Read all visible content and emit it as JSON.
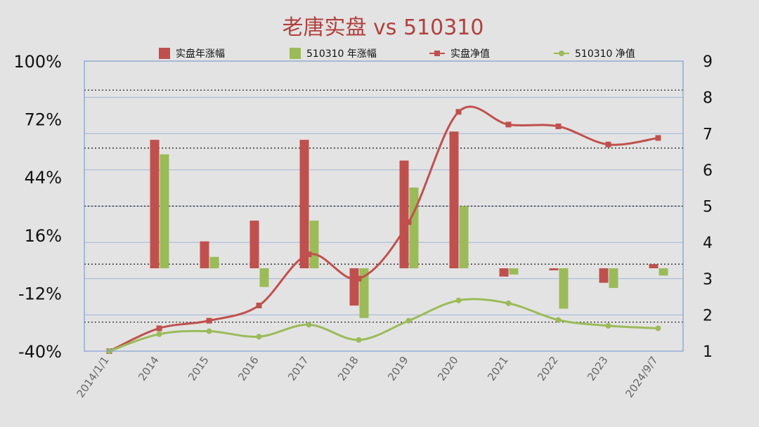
{
  "chart_data": {
    "type": "bar",
    "title": "老唐实盘 vs 510310",
    "colors": {
      "title": "#b0413e",
      "bar_shipan": "#c0504d",
      "bar_510310": "#9bbb59",
      "line_shipan": "#c0504d",
      "line_510310": "#9bbb59",
      "plot_border": "#7f9fd0",
      "grid_solid": "#9fb4d8",
      "grid_dotted": "#111111"
    },
    "categories": [
      "2014/1/1",
      "2014",
      "2015",
      "2016",
      "2017",
      "2018",
      "2019",
      "2020",
      "2021",
      "2022",
      "2023",
      "2024/9/7"
    ],
    "legend": {
      "position": "top",
      "items": [
        "实盘年涨幅",
        "510310 年涨幅",
        "实盘净值",
        "510310 净值"
      ]
    },
    "y_left": {
      "ticks": [
        "100%",
        "72%",
        "44%",
        "16%",
        "-12%",
        "-40%"
      ],
      "range": [
        -40,
        100
      ],
      "unit": "%"
    },
    "y_right": {
      "ticks": [
        "9",
        "8",
        "7",
        "6",
        "5",
        "4",
        "3",
        "2",
        "1"
      ],
      "range": [
        1,
        9
      ]
    },
    "grid": "on",
    "bar_series": [
      {
        "name": "实盘年涨幅",
        "values": [
          null,
          62,
          13,
          23,
          62,
          -18,
          52,
          66,
          -4,
          -1,
          -7,
          2
        ]
      },
      {
        "name": "510310 年涨幅",
        "values": [
          null,
          55,
          5.5,
          -9,
          23,
          -24,
          39,
          30,
          -3,
          -19.5,
          -9.5,
          -3.5
        ]
      }
    ],
    "line_series": [
      {
        "name": "实盘净值",
        "values": [
          1.0,
          1.63,
          1.84,
          2.26,
          3.67,
          3.0,
          4.56,
          7.6,
          7.25,
          7.2,
          6.7,
          6.88
        ]
      },
      {
        "name": "510310 净值",
        "values": [
          1.0,
          1.47,
          1.55,
          1.4,
          1.73,
          1.31,
          1.84,
          2.4,
          2.32,
          1.86,
          1.7,
          1.63
        ]
      }
    ]
  }
}
